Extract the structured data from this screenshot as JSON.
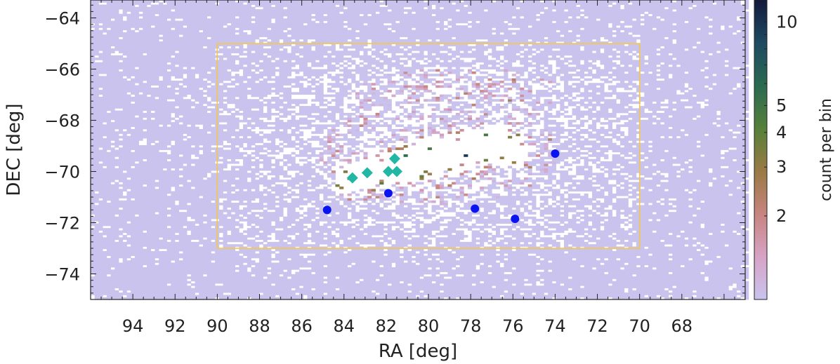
{
  "chart_data": {
    "type": "heatmap",
    "title": "",
    "xlabel": "RA [deg]",
    "ylabel": "DEC [deg]",
    "xlim": [
      96,
      65
    ],
    "ylim": [
      -75,
      -63.3
    ],
    "x_reversed": true,
    "x_ticks": [
      94,
      92,
      90,
      88,
      86,
      84,
      82,
      80,
      78,
      76,
      74,
      72,
      70,
      68
    ],
    "y_ticks": [
      -64,
      -66,
      -68,
      -70,
      -72,
      -74
    ],
    "colorbar": {
      "label": "count per bin",
      "scale": "log",
      "range": [
        1,
        12
      ],
      "ticks": [
        10,
        5,
        4,
        3,
        2
      ],
      "colors": [
        "#c9c3ee",
        "#d7a3c6",
        "#c7847f",
        "#9a7a45",
        "#56803a",
        "#2b6a50",
        "#1e4a62",
        "#141a3c"
      ]
    },
    "density_ridge": [
      {
        "ra": 84.5,
        "dec": -70.3
      },
      {
        "ra": 83.0,
        "dec": -70.1
      },
      {
        "ra": 81.5,
        "dec": -69.8
      },
      {
        "ra": 80.0,
        "dec": -69.5
      },
      {
        "ra": 78.5,
        "dec": -69.2
      },
      {
        "ra": 76.8,
        "dec": -68.9
      },
      {
        "ra": 75.2,
        "dec": -69.3
      }
    ],
    "region_box": {
      "ra": [
        90,
        70
      ],
      "dec": [
        -73,
        -65
      ],
      "color": "#f5c842"
    },
    "series": [
      {
        "color": "#0a14f0",
        "marker": "circle",
        "points": [
          {
            "x": 84.8,
            "y": -71.5
          },
          {
            "x": 81.9,
            "y": -70.85
          },
          {
            "x": 77.8,
            "y": -71.45
          },
          {
            "x": 75.9,
            "y": -71.85
          },
          {
            "x": 74.0,
            "y": -69.3
          }
        ]
      },
      {
        "color": "#22b6a4",
        "marker": "diamond",
        "points": [
          {
            "x": 83.6,
            "y": -70.25
          },
          {
            "x": 82.9,
            "y": -70.05
          },
          {
            "x": 81.9,
            "y": -70.0
          },
          {
            "x": 81.5,
            "y": -70.0
          },
          {
            "x": 81.6,
            "y": -69.5
          }
        ]
      }
    ]
  }
}
